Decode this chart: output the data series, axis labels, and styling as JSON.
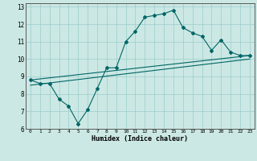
{
  "xlabel": "Humidex (Indice chaleur)",
  "bg_color": "#cce8e4",
  "grid_color": "#99cccc",
  "line_color": "#006666",
  "xlim": [
    -0.5,
    23.5
  ],
  "ylim": [
    6,
    13.2
  ],
  "xticks": [
    0,
    1,
    2,
    3,
    4,
    5,
    6,
    7,
    8,
    9,
    10,
    11,
    12,
    13,
    14,
    15,
    16,
    17,
    18,
    19,
    20,
    21,
    22,
    23
  ],
  "yticks": [
    6,
    7,
    8,
    9,
    10,
    11,
    12,
    13
  ],
  "line1_x": [
    0,
    1,
    2,
    3,
    4,
    5,
    6,
    7,
    8,
    9,
    10,
    11,
    12,
    13,
    14,
    15,
    16,
    17,
    18,
    19,
    20,
    21,
    22,
    23
  ],
  "line1_y": [
    8.8,
    8.6,
    8.6,
    7.7,
    7.3,
    6.3,
    7.1,
    8.3,
    9.5,
    9.5,
    11.0,
    11.6,
    12.4,
    12.5,
    12.6,
    12.8,
    11.8,
    11.5,
    11.3,
    10.5,
    11.1,
    10.4,
    10.2,
    10.2
  ],
  "line2_x": [
    0,
    23
  ],
  "line2_y": [
    8.8,
    10.2
  ],
  "line3_x": [
    0,
    23
  ],
  "line3_y": [
    8.5,
    10.0
  ]
}
